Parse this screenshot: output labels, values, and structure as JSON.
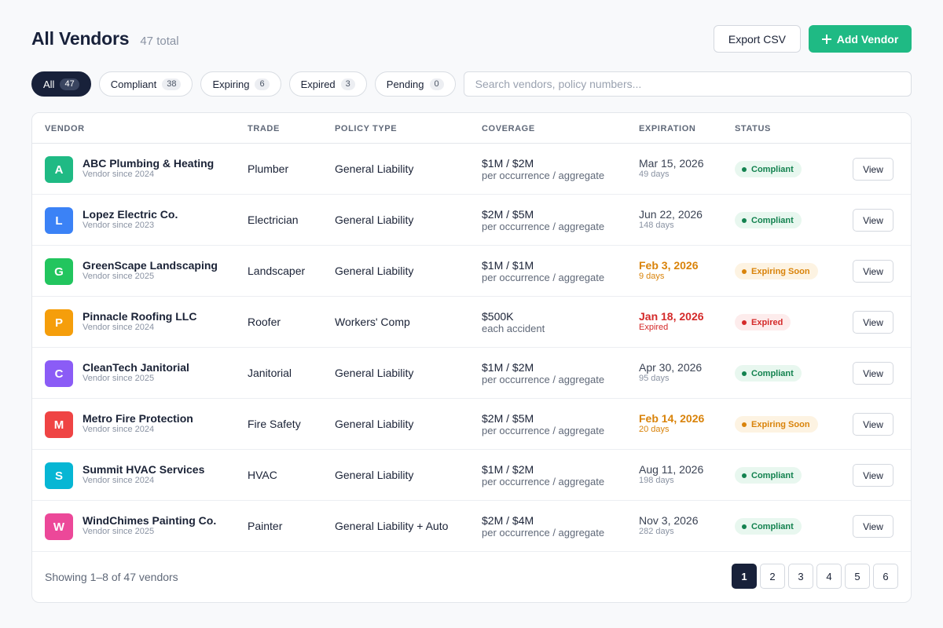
{
  "header": {
    "title": "All Vendors",
    "total": "47 total",
    "export_label": "Export CSV",
    "add_label": "Add Vendor"
  },
  "filters": [
    {
      "label": "All",
      "count": "47",
      "active": true
    },
    {
      "label": "Compliant",
      "count": "38",
      "active": false
    },
    {
      "label": "Expiring",
      "count": "6",
      "active": false
    },
    {
      "label": "Expired",
      "count": "3",
      "active": false
    },
    {
      "label": "Pending",
      "count": "0",
      "active": false
    }
  ],
  "search": {
    "placeholder": "Search vendors, policy numbers...",
    "value": ""
  },
  "table": {
    "columns": {
      "vendor": "VENDOR",
      "trade": "TRADE",
      "policy": "POLICY TYPE",
      "coverage": "COVERAGE",
      "expiration": "EXPIRATION",
      "status": "STATUS"
    },
    "view_label": "View",
    "rows": [
      {
        "initial": "A",
        "avatar_color": "#1fba84",
        "name": "ABC Plumbing & Heating",
        "since": "Vendor since 2024",
        "trade": "Plumber",
        "policy": "General Liability",
        "coverage": "$1M / $2M",
        "coverage_sub": "per occurrence / aggregate",
        "expiration": "Mar 15, 2026",
        "expiration_sub": "49 days",
        "exp_state": "normal",
        "status": "Compliant",
        "status_kind": "ok"
      },
      {
        "initial": "L",
        "avatar_color": "#3b82f6",
        "name": "Lopez Electric Co.",
        "since": "Vendor since 2023",
        "trade": "Electrician",
        "policy": "General Liability",
        "coverage": "$2M / $5M",
        "coverage_sub": "per occurrence / aggregate",
        "expiration": "Jun 22, 2026",
        "expiration_sub": "148 days",
        "exp_state": "normal",
        "status": "Compliant",
        "status_kind": "ok"
      },
      {
        "initial": "G",
        "avatar_color": "#22c55e",
        "name": "GreenScape Landscaping",
        "since": "Vendor since 2025",
        "trade": "Landscaper",
        "policy": "General Liability",
        "coverage": "$1M / $1M",
        "coverage_sub": "per occurrence / aggregate",
        "expiration": "Feb 3, 2026",
        "expiration_sub": "9 days",
        "exp_state": "warn",
        "status": "Expiring Soon",
        "status_kind": "warn"
      },
      {
        "initial": "P",
        "avatar_color": "#f59e0b",
        "name": "Pinnacle Roofing LLC",
        "since": "Vendor since 2024",
        "trade": "Roofer",
        "policy": "Workers' Comp",
        "coverage": "$500K",
        "coverage_sub": "each accident",
        "expiration": "Jan 18, 2026",
        "expiration_sub": "Expired",
        "exp_state": "bad",
        "status": "Expired",
        "status_kind": "bad"
      },
      {
        "initial": "C",
        "avatar_color": "#8b5cf6",
        "name": "CleanTech Janitorial",
        "since": "Vendor since 2025",
        "trade": "Janitorial",
        "policy": "General Liability",
        "coverage": "$1M / $2M",
        "coverage_sub": "per occurrence / aggregate",
        "expiration": "Apr 30, 2026",
        "expiration_sub": "95 days",
        "exp_state": "normal",
        "status": "Compliant",
        "status_kind": "ok"
      },
      {
        "initial": "M",
        "avatar_color": "#ef4444",
        "name": "Metro Fire Protection",
        "since": "Vendor since 2024",
        "trade": "Fire Safety",
        "policy": "General Liability",
        "coverage": "$2M / $5M",
        "coverage_sub": "per occurrence / aggregate",
        "expiration": "Feb 14, 2026",
        "expiration_sub": "20 days",
        "exp_state": "warn",
        "status": "Expiring Soon",
        "status_kind": "warn"
      },
      {
        "initial": "S",
        "avatar_color": "#06b6d4",
        "name": "Summit HVAC Services",
        "since": "Vendor since 2024",
        "trade": "HVAC",
        "policy": "General Liability",
        "coverage": "$1M / $2M",
        "coverage_sub": "per occurrence / aggregate",
        "expiration": "Aug 11, 2026",
        "expiration_sub": "198 days",
        "exp_state": "normal",
        "status": "Compliant",
        "status_kind": "ok"
      },
      {
        "initial": "W",
        "avatar_color": "#ec4899",
        "name": "WindChimes Painting Co.",
        "since": "Vendor since 2025",
        "trade": "Painter",
        "policy": "General Liability + Auto",
        "coverage": "$2M / $4M",
        "coverage_sub": "per occurrence / aggregate",
        "expiration": "Nov 3, 2026",
        "expiration_sub": "282 days",
        "exp_state": "normal",
        "status": "Compliant",
        "status_kind": "ok"
      }
    ]
  },
  "footer": {
    "showing": "Showing 1–8 of 47 vendors",
    "pages": [
      "1",
      "2",
      "3",
      "4",
      "5",
      "6"
    ],
    "current_page": "1"
  }
}
